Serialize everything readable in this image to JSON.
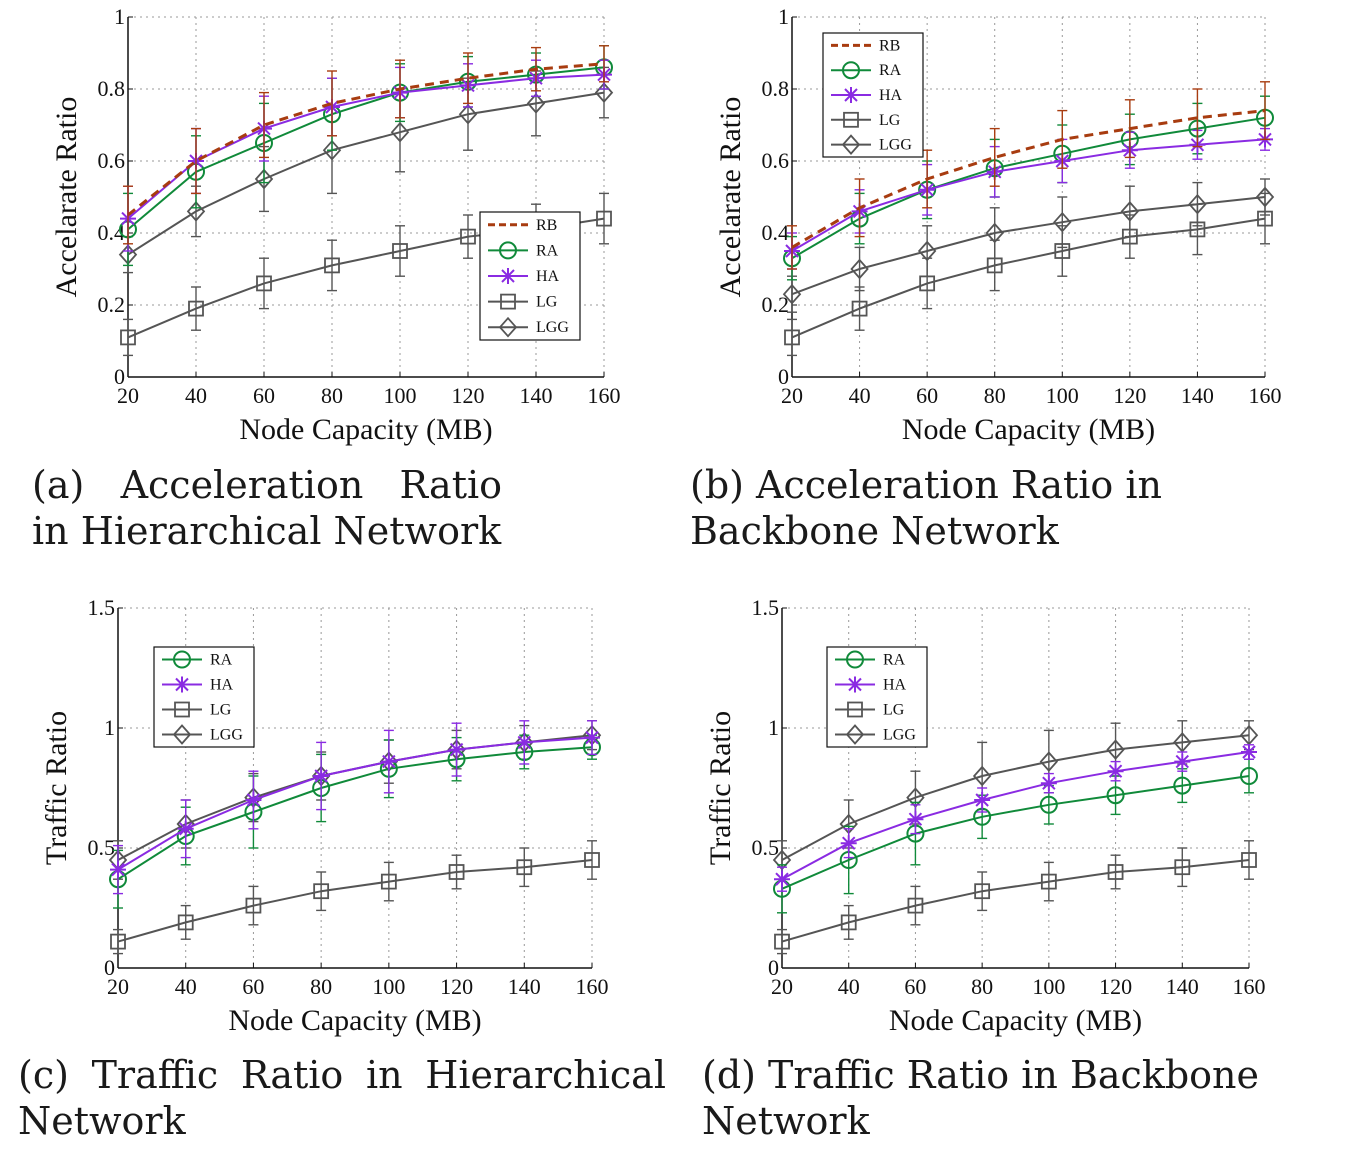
{
  "colors": {
    "RB": "#a83c10",
    "RA": "#108a3a",
    "HA": "#8a2be2",
    "LG": "#555555",
    "LGG": "#555555",
    "grid": "#999999",
    "axis": "#111111"
  },
  "chart_data": [
    {
      "id": "a",
      "type": "line",
      "caption": "(a) Acceleration Ratio in Hierarchical Network",
      "xlabel": "Node Capacity (MB)",
      "ylabel": "Accelarate Ratio",
      "xlim": [
        20,
        160
      ],
      "ylim": [
        0,
        1
      ],
      "xticks": [
        "20",
        "40",
        "60",
        "80",
        "100",
        "120",
        "140",
        "160"
      ],
      "yticks": [
        "0",
        "0.2",
        "0.4",
        "0.6",
        "0.8",
        "1"
      ],
      "grid": true,
      "legend_position": "center-right",
      "x": [
        20,
        40,
        60,
        80,
        100,
        120,
        140,
        160
      ],
      "series": [
        {
          "name": "RB",
          "marker": "none",
          "dashed": true,
          "values": [
            0.45,
            0.6,
            0.7,
            0.76,
            0.8,
            0.83,
            0.855,
            0.87
          ],
          "err": [
            0.08,
            0.09,
            0.09,
            0.09,
            0.08,
            0.07,
            0.06,
            0.05
          ]
        },
        {
          "name": "RA",
          "marker": "circle",
          "dashed": false,
          "values": [
            0.41,
            0.57,
            0.65,
            0.73,
            0.79,
            0.82,
            0.84,
            0.86
          ],
          "err": [
            0.1,
            0.1,
            0.11,
            0.1,
            0.08,
            0.07,
            0.06,
            0.06
          ]
        },
        {
          "name": "HA",
          "marker": "star",
          "dashed": false,
          "values": [
            0.44,
            0.6,
            0.69,
            0.75,
            0.79,
            0.81,
            0.83,
            0.84
          ],
          "err": [
            0.09,
            0.09,
            0.09,
            0.08,
            0.07,
            0.06,
            0.05,
            0.04
          ]
        },
        {
          "name": "LG",
          "marker": "square",
          "dashed": false,
          "values": [
            0.11,
            0.19,
            0.26,
            0.31,
            0.35,
            0.39,
            0.41,
            0.44
          ],
          "err": [
            0.05,
            0.06,
            0.07,
            0.07,
            0.07,
            0.06,
            0.07,
            0.07
          ]
        },
        {
          "name": "LGG",
          "marker": "diamond",
          "dashed": false,
          "values": [
            0.34,
            0.46,
            0.55,
            0.63,
            0.68,
            0.73,
            0.76,
            0.79
          ],
          "err": [
            0.05,
            0.07,
            0.09,
            0.12,
            0.11,
            0.1,
            0.09,
            0.07
          ]
        }
      ]
    },
    {
      "id": "b",
      "type": "line",
      "caption": "(b) Acceleration Ratio in Backbone Network",
      "xlabel": "Node Capacity (MB)",
      "ylabel": "Accelarate Ratio",
      "xlim": [
        20,
        160
      ],
      "ylim": [
        0,
        1
      ],
      "xticks": [
        "20",
        "40",
        "60",
        "80",
        "100",
        "120",
        "140",
        "160"
      ],
      "yticks": [
        "0",
        "0.2",
        "0.4",
        "0.6",
        "0.8",
        "1"
      ],
      "grid": true,
      "legend_position": "top-left",
      "x": [
        20,
        40,
        60,
        80,
        100,
        120,
        140,
        160
      ],
      "series": [
        {
          "name": "RB",
          "marker": "none",
          "dashed": true,
          "values": [
            0.36,
            0.47,
            0.55,
            0.61,
            0.66,
            0.69,
            0.72,
            0.74
          ],
          "err": [
            0.06,
            0.08,
            0.08,
            0.08,
            0.08,
            0.08,
            0.08,
            0.08
          ]
        },
        {
          "name": "RA",
          "marker": "circle",
          "dashed": false,
          "values": [
            0.33,
            0.44,
            0.52,
            0.58,
            0.62,
            0.66,
            0.69,
            0.72
          ],
          "err": [
            0.06,
            0.07,
            0.08,
            0.08,
            0.08,
            0.07,
            0.07,
            0.06
          ]
        },
        {
          "name": "HA",
          "marker": "star",
          "dashed": false,
          "values": [
            0.35,
            0.46,
            0.52,
            0.57,
            0.6,
            0.63,
            0.645,
            0.66
          ],
          "err": [
            0.05,
            0.06,
            0.07,
            0.07,
            0.06,
            0.05,
            0.04,
            0.03
          ]
        },
        {
          "name": "LG",
          "marker": "square",
          "dashed": false,
          "values": [
            0.11,
            0.19,
            0.26,
            0.31,
            0.35,
            0.39,
            0.41,
            0.44
          ],
          "err": [
            0.05,
            0.06,
            0.07,
            0.07,
            0.07,
            0.06,
            0.07,
            0.07
          ]
        },
        {
          "name": "LGG",
          "marker": "diamond",
          "dashed": false,
          "values": [
            0.23,
            0.3,
            0.35,
            0.4,
            0.43,
            0.46,
            0.48,
            0.5
          ],
          "err": [
            0.05,
            0.06,
            0.07,
            0.07,
            0.07,
            0.07,
            0.06,
            0.05
          ]
        }
      ]
    },
    {
      "id": "c",
      "type": "line",
      "caption": "(c) Traffic Ratio in Hierarchical Network",
      "xlabel": "Node Capacity (MB)",
      "ylabel": "Traffic Ratio",
      "xlim": [
        20,
        160
      ],
      "ylim": [
        0,
        1.5
      ],
      "xticks": [
        "20",
        "40",
        "60",
        "80",
        "100",
        "120",
        "140",
        "160"
      ],
      "yticks": [
        "0",
        "0.5",
        "1",
        "1.5"
      ],
      "grid": true,
      "legend_position": "top-left",
      "x": [
        20,
        40,
        60,
        80,
        100,
        120,
        140,
        160
      ],
      "series": [
        {
          "name": "RA",
          "marker": "circle",
          "dashed": false,
          "values": [
            0.37,
            0.55,
            0.65,
            0.75,
            0.83,
            0.87,
            0.9,
            0.92
          ],
          "err": [
            0.12,
            0.12,
            0.15,
            0.14,
            0.12,
            0.09,
            0.07,
            0.05
          ]
        },
        {
          "name": "HA",
          "marker": "star",
          "dashed": false,
          "values": [
            0.41,
            0.58,
            0.7,
            0.8,
            0.86,
            0.91,
            0.94,
            0.96
          ],
          "err": [
            0.1,
            0.12,
            0.12,
            0.14,
            0.13,
            0.11,
            0.09,
            0.07
          ]
        },
        {
          "name": "LG",
          "marker": "square",
          "dashed": false,
          "values": [
            0.11,
            0.19,
            0.26,
            0.32,
            0.36,
            0.4,
            0.42,
            0.45
          ],
          "err": [
            0.05,
            0.07,
            0.08,
            0.08,
            0.08,
            0.07,
            0.08,
            0.08
          ]
        },
        {
          "name": "LGG",
          "marker": "diamond",
          "dashed": false,
          "values": [
            0.45,
            0.6,
            0.71,
            0.8,
            0.86,
            0.91,
            0.94,
            0.97
          ],
          "err": [
            0.08,
            0.1,
            0.1,
            0.1,
            0.09,
            0.08,
            0.07,
            0.06
          ]
        }
      ]
    },
    {
      "id": "d",
      "type": "line",
      "caption": "(d) Traffic Ratio in Backbone Network",
      "xlabel": "Node Capacity (MB)",
      "ylabel": "Traffic Ratio",
      "xlim": [
        20,
        160
      ],
      "ylim": [
        0,
        1.5
      ],
      "xticks": [
        "20",
        "40",
        "60",
        "80",
        "100",
        "120",
        "140",
        "160"
      ],
      "yticks": [
        "0",
        "0.5",
        "1",
        "1.5"
      ],
      "grid": true,
      "legend_position": "top-left",
      "x": [
        20,
        40,
        60,
        80,
        100,
        120,
        140,
        160
      ],
      "series": [
        {
          "name": "RA",
          "marker": "circle",
          "dashed": false,
          "values": [
            0.33,
            0.45,
            0.56,
            0.63,
            0.68,
            0.72,
            0.76,
            0.8
          ],
          "err": [
            0.1,
            0.14,
            0.13,
            0.09,
            0.08,
            0.08,
            0.07,
            0.07
          ]
        },
        {
          "name": "HA",
          "marker": "star",
          "dashed": false,
          "values": [
            0.37,
            0.52,
            0.62,
            0.7,
            0.77,
            0.82,
            0.86,
            0.9
          ],
          "err": [
            0.05,
            0.06,
            0.06,
            0.05,
            0.04,
            0.04,
            0.04,
            0.03
          ]
        },
        {
          "name": "LG",
          "marker": "square",
          "dashed": false,
          "values": [
            0.11,
            0.19,
            0.26,
            0.32,
            0.36,
            0.4,
            0.42,
            0.45
          ],
          "err": [
            0.05,
            0.07,
            0.08,
            0.08,
            0.08,
            0.07,
            0.08,
            0.08
          ]
        },
        {
          "name": "LGG",
          "marker": "diamond",
          "dashed": false,
          "values": [
            0.45,
            0.6,
            0.71,
            0.8,
            0.86,
            0.91,
            0.94,
            0.97
          ],
          "err": [
            0.08,
            0.1,
            0.11,
            0.14,
            0.13,
            0.11,
            0.09,
            0.06
          ]
        }
      ]
    }
  ]
}
